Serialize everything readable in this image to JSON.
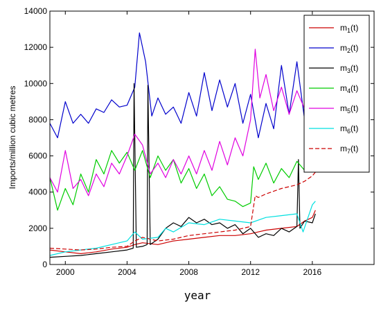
{
  "chart_data": {
    "type": "line",
    "xlabel": "year",
    "ylabel": "Imports/million cubic metres",
    "xlim": [
      1999,
      2020
    ],
    "ylim": [
      0,
      14000
    ],
    "xticks": [
      2000,
      2004,
      2008,
      2012,
      2016
    ],
    "yticks": [
      0,
      2000,
      4000,
      6000,
      8000,
      10000,
      12000,
      14000
    ],
    "grid": false,
    "legend_position": "top-right",
    "series": [
      {
        "name": "m1(t)",
        "color": "#cc0000",
        "style": "solid",
        "x": [
          1999,
          2000,
          2001,
          2002,
          2003,
          2004,
          2004.5,
          2005,
          2006,
          2007,
          2008,
          2009,
          2010,
          2011,
          2012,
          2012.5,
          2013,
          2014,
          2015,
          2015.5,
          2016,
          2016.2
        ],
        "y": [
          800,
          700,
          600,
          700,
          850,
          950,
          1100,
          1200,
          1100,
          1300,
          1400,
          1500,
          1600,
          1600,
          1700,
          1800,
          1900,
          2000,
          2100,
          2400,
          2600,
          3000
        ]
      },
      {
        "name": "m2(t)",
        "color": "#0000cc",
        "style": "solid",
        "x": [
          1999,
          1999.5,
          2000,
          2000.5,
          2001,
          2001.5,
          2002,
          2002.5,
          2003,
          2003.5,
          2004,
          2004.5,
          2004.8,
          2005.2,
          2005.6,
          2006,
          2006.5,
          2007,
          2007.5,
          2008,
          2008.5,
          2009,
          2009.5,
          2010,
          2010.5,
          2011,
          2011.5,
          2012,
          2012.5,
          2013,
          2013.5,
          2014,
          2014.5,
          2015,
          2015.5,
          2016,
          2016.2
        ],
        "y": [
          7800,
          7000,
          9000,
          7800,
          8300,
          7800,
          8600,
          8400,
          9100,
          8700,
          8800,
          9800,
          12800,
          11200,
          8200,
          9200,
          8300,
          8700,
          7800,
          9500,
          8200,
          10600,
          8500,
          10200,
          8700,
          10000,
          7800,
          9400,
          7000,
          8900,
          7500,
          11000,
          8300,
          11200,
          8000,
          10800,
          9000
        ]
      },
      {
        "name": "m3(t)",
        "color": "#000000",
        "style": "solid",
        "x": [
          1999,
          2000,
          2001,
          2002,
          2003,
          2004,
          2004.4,
          2004.45,
          2004.6,
          2005,
          2005.3,
          2005.35,
          2005.5,
          2006,
          2006.5,
          2007,
          2007.5,
          2008,
          2008.5,
          2009,
          2009.5,
          2010,
          2010.5,
          2011,
          2011.5,
          2012,
          2012.5,
          2013,
          2013.5,
          2014,
          2014.5,
          2015,
          2015.1,
          2015.2,
          2015.5,
          2016,
          2016.2
        ],
        "y": [
          400,
          450,
          500,
          600,
          700,
          800,
          900,
          10000,
          950,
          1000,
          1100,
          9900,
          1100,
          1400,
          2000,
          2300,
          2100,
          2600,
          2300,
          2500,
          2200,
          2300,
          2000,
          2200,
          1700,
          2000,
          1500,
          1700,
          1600,
          2000,
          1800,
          2100,
          5800,
          2000,
          2400,
          2300,
          2800
        ]
      },
      {
        "name": "m4(t)",
        "color": "#00cc00",
        "style": "solid",
        "x": [
          1999,
          1999.5,
          2000,
          2000.5,
          2001,
          2001.5,
          2002,
          2002.5,
          2003,
          2003.5,
          2004,
          2004.5,
          2005,
          2005.5,
          2006,
          2006.5,
          2007,
          2007.5,
          2008,
          2008.5,
          2009,
          2009.5,
          2010,
          2010.5,
          2011,
          2011.5,
          2012,
          2012.2,
          2012.5,
          2013,
          2013.5,
          2014,
          2014.5,
          2015,
          2015.5,
          2016,
          2016.2
        ],
        "y": [
          4800,
          3000,
          4200,
          3300,
          5000,
          4000,
          5800,
          5000,
          6300,
          5600,
          6200,
          5200,
          6300,
          4800,
          6000,
          5200,
          5800,
          4500,
          5300,
          4200,
          5000,
          3800,
          4300,
          3600,
          3500,
          3200,
          3400,
          5400,
          4700,
          5600,
          4500,
          5300,
          4800,
          5700,
          5200,
          5800,
          6200
        ]
      },
      {
        "name": "m5(t)",
        "color": "#e000e0",
        "style": "solid",
        "x": [
          1999,
          1999.5,
          2000,
          2000.5,
          2001,
          2001.5,
          2002,
          2002.5,
          2003,
          2003.5,
          2004,
          2004.5,
          2005,
          2005.5,
          2006,
          2006.5,
          2007,
          2007.5,
          2008,
          2008.5,
          2009,
          2009.5,
          2010,
          2010.5,
          2011,
          2011.5,
          2012,
          2012.3,
          2012.6,
          2013,
          2013.5,
          2014,
          2014.5,
          2015,
          2015.5,
          2016,
          2016.2
        ],
        "y": [
          4800,
          4000,
          6300,
          4200,
          4700,
          3800,
          5000,
          4300,
          5600,
          5000,
          6000,
          7200,
          6600,
          5000,
          5600,
          4800,
          5800,
          5000,
          6000,
          5000,
          6300,
          5200,
          6800,
          5500,
          7000,
          6000,
          8000,
          11900,
          9200,
          10500,
          8500,
          9800,
          8300,
          9600,
          8600,
          9800,
          8800
        ]
      },
      {
        "name": "m6(t)",
        "color": "#00e0e0",
        "style": "solid",
        "x": [
          1999,
          2000,
          2001,
          2002,
          2003,
          2004,
          2004.5,
          2005,
          2006,
          2006.5,
          2007,
          2008,
          2009,
          2010,
          2011,
          2012,
          2013,
          2014,
          2015,
          2015.4,
          2016,
          2016.2
        ],
        "y": [
          500,
          700,
          800,
          900,
          1100,
          1300,
          1800,
          1400,
          1500,
          2000,
          1800,
          2300,
          2200,
          2500,
          2400,
          2300,
          2600,
          2700,
          2800,
          1800,
          3300,
          3500
        ]
      },
      {
        "name": "m7(t)",
        "color": "#cc0000",
        "style": "dashed",
        "x": [
          1999,
          2000,
          2001,
          2002,
          2003,
          2004,
          2004.5,
          2005,
          2006,
          2007,
          2008,
          2009,
          2010,
          2011,
          2012,
          2012.3,
          2012.5,
          2013,
          2014,
          2015,
          2015.5,
          2016,
          2016.2
        ],
        "y": [
          900,
          850,
          800,
          850,
          950,
          1000,
          1300,
          1500,
          1300,
          1400,
          1600,
          1700,
          1800,
          1900,
          2100,
          3800,
          3700,
          3900,
          4200,
          4400,
          4600,
          4900,
          5100
        ]
      }
    ]
  },
  "legend": {
    "entries": [
      {
        "base": "m",
        "sub": "1",
        "suffix": "(t)"
      },
      {
        "base": "m",
        "sub": "2",
        "suffix": "(t)"
      },
      {
        "base": "m",
        "sub": "3",
        "suffix": "(t)"
      },
      {
        "base": "m",
        "sub": "4",
        "suffix": "(t)"
      },
      {
        "base": "m",
        "sub": "5",
        "suffix": "(t)"
      },
      {
        "base": "m",
        "sub": "6",
        "suffix": "(t)"
      },
      {
        "base": "m",
        "sub": "7",
        "suffix": "(t)"
      }
    ]
  }
}
